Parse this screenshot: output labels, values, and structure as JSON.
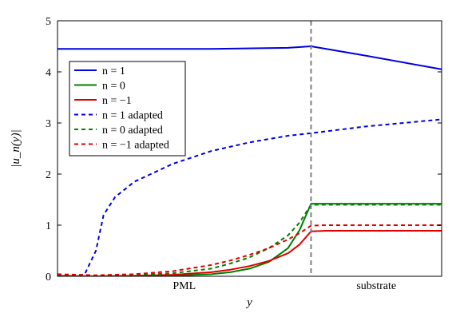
{
  "chart_data": {
    "type": "line",
    "xlabel": "y",
    "ylabel": "|u_n(y)|",
    "ylim": [
      0,
      5
    ],
    "xlim": [
      0,
      1
    ],
    "yticks": [
      "0",
      "1",
      "2",
      "3",
      "4",
      "5"
    ],
    "region_labels": [
      "PML",
      "substrate"
    ],
    "interface_x": 0.66,
    "grid": false,
    "legend_position": "top-left",
    "series": [
      {
        "name": "n = 1",
        "color": "#0000e0",
        "dash": false,
        "x": [
          0,
          0.2,
          0.4,
          0.6,
          0.66,
          0.8,
          1.0
        ],
        "y": [
          4.45,
          4.45,
          4.45,
          4.47,
          4.5,
          4.32,
          4.05
        ]
      },
      {
        "name": "n = 0",
        "color": "#008000",
        "dash": false,
        "x": [
          0,
          0.1,
          0.2,
          0.3,
          0.4,
          0.45,
          0.5,
          0.55,
          0.6,
          0.63,
          0.66,
          0.7,
          1.0
        ],
        "y": [
          0,
          0,
          0,
          0.01,
          0.04,
          0.08,
          0.15,
          0.28,
          0.55,
          0.9,
          1.42,
          1.42,
          1.42
        ]
      },
      {
        "name": "n = −1",
        "color": "#e00000",
        "dash": false,
        "x": [
          0,
          0.1,
          0.2,
          0.3,
          0.4,
          0.45,
          0.5,
          0.55,
          0.6,
          0.63,
          0.66,
          0.7,
          1.0
        ],
        "y": [
          0.01,
          0,
          0.01,
          0.03,
          0.08,
          0.13,
          0.2,
          0.3,
          0.45,
          0.62,
          0.88,
          0.89,
          0.89
        ]
      },
      {
        "name": "n = 1  adapted",
        "color": "#0000e0",
        "dash": true,
        "x": [
          0,
          0.05,
          0.07,
          0.1,
          0.12,
          0.15,
          0.2,
          0.3,
          0.4,
          0.5,
          0.6,
          0.66,
          0.8,
          1.0
        ],
        "y": [
          0.01,
          0.02,
          0.03,
          0.5,
          1.2,
          1.55,
          1.85,
          2.2,
          2.45,
          2.62,
          2.75,
          2.8,
          2.93,
          3.07
        ]
      },
      {
        "name": "n = 0  adapted",
        "color": "#008000",
        "dash": true,
        "x": [
          0,
          0.1,
          0.2,
          0.3,
          0.4,
          0.45,
          0.5,
          0.55,
          0.6,
          0.63,
          0.66,
          0.7,
          1.0
        ],
        "y": [
          0.02,
          0.01,
          0.02,
          0.06,
          0.15,
          0.25,
          0.37,
          0.55,
          0.8,
          1.05,
          1.4,
          1.4,
          1.4
        ]
      },
      {
        "name": "n = −1  adapted",
        "color": "#e00000",
        "dash": true,
        "x": [
          0,
          0.1,
          0.2,
          0.3,
          0.4,
          0.45,
          0.5,
          0.55,
          0.6,
          0.63,
          0.66,
          0.7,
          1.0
        ],
        "y": [
          0.04,
          0.02,
          0.04,
          0.1,
          0.22,
          0.31,
          0.42,
          0.55,
          0.72,
          0.84,
          0.99,
          1.0,
          1.0
        ]
      }
    ]
  }
}
